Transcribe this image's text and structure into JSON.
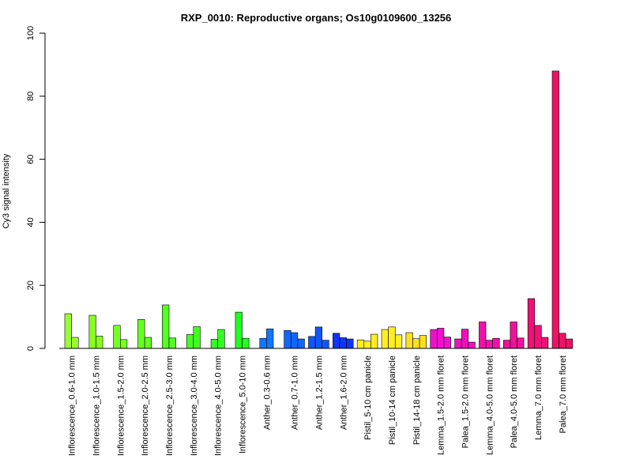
{
  "chart_data": {
    "type": "bar",
    "title": "RXP_0010: Reproductive organs; Os10g0109600_13256",
    "xlabel": "",
    "ylabel": "Cy3 signal intensity",
    "ylim": [
      0,
      100
    ],
    "yticks": [
      "0",
      "20",
      "40",
      "60",
      "80",
      "100"
    ],
    "grid": false,
    "groups": [
      {
        "label": "Inflorescence_0.6-1.0 mm",
        "color": "#99ff33",
        "values": [
          11.0,
          3.5
        ]
      },
      {
        "label": "Inflorescence_1.0-1.5 mm",
        "color": "#88ff22",
        "values": [
          10.5,
          3.9
        ]
      },
      {
        "label": "Inflorescence_1.5-2.0 mm",
        "color": "#77ff22",
        "values": [
          7.3,
          2.8
        ]
      },
      {
        "label": "Inflorescence_2.0-2.5 mm",
        "color": "#66ff22",
        "values": [
          9.2,
          3.5
        ]
      },
      {
        "label": "Inflorescence_2.5-3.0 mm",
        "color": "#55ff22",
        "values": [
          13.8,
          3.3
        ]
      },
      {
        "label": "Inflorescence_3.0-4.0 mm",
        "color": "#44ff22",
        "values": [
          4.4,
          6.9
        ]
      },
      {
        "label": "Inflorescence_4.0-5.0 mm",
        "color": "#33ff22",
        "values": [
          2.9,
          6.0
        ]
      },
      {
        "label": "Inflorescence_5.0-10 mm",
        "color": "#22ff22",
        "values": [
          11.5,
          3.2
        ]
      },
      {
        "label": "Anther_0.3-0.6 mm",
        "color": "#1177ff",
        "values": [
          3.2,
          6.2
        ]
      },
      {
        "label": "Anther_0.7-1.0 mm",
        "color": "#1166ff",
        "values": [
          5.7,
          5.0,
          3.0
        ]
      },
      {
        "label": "Anther_1.2-1.5 mm",
        "color": "#1155ff",
        "values": [
          3.8,
          6.8,
          2.6
        ]
      },
      {
        "label": "Anther_1.6-2.0 mm",
        "color": "#1133ff",
        "values": [
          4.8,
          3.4,
          3.0
        ]
      },
      {
        "label": "Pistil_5-10 cm panicle",
        "color": "#ffee22",
        "values": [
          2.7,
          2.3,
          4.5
        ]
      },
      {
        "label": "Pistil_10-14 cm panicle",
        "color": "#ffee22",
        "values": [
          6.0,
          6.8,
          4.3
        ]
      },
      {
        "label": "Pistil_14-18 cm panicle",
        "color": "#ffe022",
        "values": [
          5.0,
          3.1,
          4.1
        ]
      },
      {
        "label": "Lemma_1.5-2.0 mm floret",
        "color": "#ee11cc",
        "values": [
          6.0,
          6.4,
          3.6
        ]
      },
      {
        "label": "Palea_1.5-2.0 mm floret",
        "color": "#ee11bb",
        "values": [
          3.0,
          6.1,
          2.0
        ]
      },
      {
        "label": "Lemma_4.0-5.0 mm floret",
        "color": "#ee11aa",
        "values": [
          8.4,
          2.6,
          3.2
        ]
      },
      {
        "label": "Palea_4.0-5.0 mm floret",
        "color": "#ee1199",
        "values": [
          2.6,
          8.4,
          3.3
        ]
      },
      {
        "label": "Lemma_7.0 mm floret",
        "color": "#ee1177",
        "values": [
          15.8,
          7.3,
          3.5
        ]
      },
      {
        "label": "Palea_7.0 mm floret",
        "color": "#ee1166",
        "values": [
          88.0,
          4.8,
          3.0
        ]
      }
    ]
  }
}
